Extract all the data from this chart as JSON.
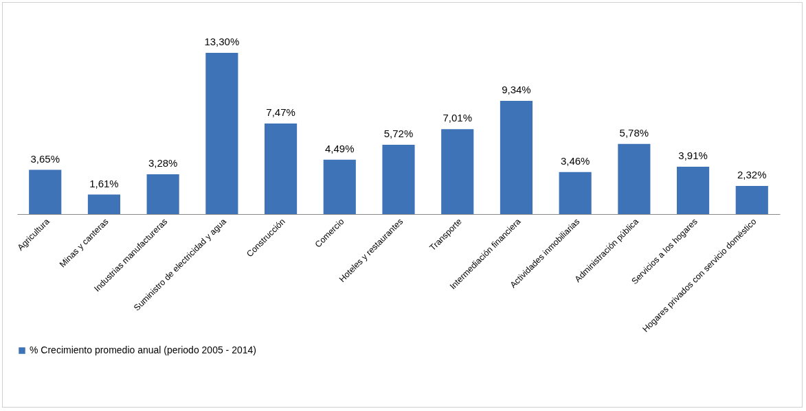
{
  "chart_data": {
    "type": "bar",
    "categories": [
      "Agricultura",
      "Minas y canteras",
      "Industrias manufactureras",
      "Suministro de electricidad y agua",
      "Construcción",
      "Comercio",
      "Hoteles y restaurantes",
      "Transporte",
      "Intermediación financiera",
      "Actividades inmobiliarias",
      "Administración pública",
      "Servicios a los hogares",
      "Hogares privados con servicio doméstico"
    ],
    "series": [
      {
        "name": "% Crecimiento promedio anual (periodo 2005 - 2014)",
        "color": "#3f73b8",
        "values": [
          3.65,
          1.61,
          3.28,
          13.3,
          7.47,
          4.49,
          5.72,
          7.01,
          9.34,
          3.46,
          5.78,
          3.91,
          2.32
        ],
        "value_labels": [
          "3,65%",
          "1,61%",
          "3,28%",
          "13,30%",
          "7,47%",
          "4,49%",
          "5,72%",
          "7,01%",
          "9,34%",
          "3,46%",
          "5,78%",
          "3,91%",
          "2,32%"
        ]
      }
    ],
    "legend": "bottom"
  }
}
